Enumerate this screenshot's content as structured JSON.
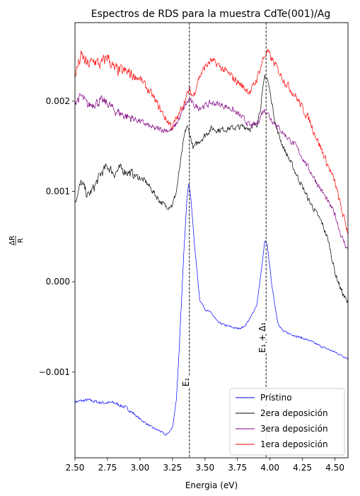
{
  "chart_data": {
    "type": "line",
    "title": "Espectros de RDS para la muestra CdTe(001)/Ag",
    "xlabel": "Energia (eV)",
    "ylabel": "ΔR/R",
    "xlim": [
      2.5,
      4.6
    ],
    "ylim": [
      -0.00195,
      0.00287
    ],
    "xticks": [
      2.5,
      2.75,
      3.0,
      3.25,
      3.5,
      3.75,
      4.0,
      4.25,
      4.5
    ],
    "xtick_labels": [
      "2.50",
      "2.75",
      "3.00",
      "3.25",
      "3.50",
      "3.75",
      "4.00",
      "4.25",
      "4.50"
    ],
    "yticks": [
      -0.001,
      0.0,
      0.001,
      0.002
    ],
    "ytick_labels": [
      "−0.001",
      "0.000",
      "0.001",
      "0.002"
    ],
    "grid": false,
    "legend_position": "lower-right",
    "vlines": [
      {
        "x": 3.38,
        "label": "E₁"
      },
      {
        "x": 3.97,
        "label": "E₁ + Δ₁"
      }
    ],
    "series": [
      {
        "name": "Prístino",
        "color": "#0000ff",
        "noise": 1e-05,
        "points": [
          [
            2.5,
            -0.00133
          ],
          [
            2.6,
            -0.00131
          ],
          [
            2.7,
            -0.00134
          ],
          [
            2.8,
            -0.00134
          ],
          [
            2.9,
            -0.0014
          ],
          [
            3.0,
            -0.00152
          ],
          [
            3.1,
            -0.00162
          ],
          [
            3.15,
            -0.00165
          ],
          [
            3.2,
            -0.0017
          ],
          [
            3.25,
            -0.00162
          ],
          [
            3.28,
            -0.0013
          ],
          [
            3.3,
            -0.0008
          ],
          [
            3.32,
            -0.0002
          ],
          [
            3.34,
            0.0004
          ],
          [
            3.36,
            0.0009
          ],
          [
            3.375,
            0.0011
          ],
          [
            3.39,
            0.00095
          ],
          [
            3.42,
            0.0004
          ],
          [
            3.46,
            -0.0002
          ],
          [
            3.5,
            -0.0003
          ],
          [
            3.55,
            -0.00035
          ],
          [
            3.6,
            -0.00045
          ],
          [
            3.65,
            -0.00048
          ],
          [
            3.7,
            -0.0005
          ],
          [
            3.75,
            -0.00052
          ],
          [
            3.8,
            -0.0005
          ],
          [
            3.85,
            -0.0004
          ],
          [
            3.9,
            -0.00025
          ],
          [
            3.94,
            0.0002
          ],
          [
            3.96,
            0.00045
          ],
          [
            3.98,
            0.0004
          ],
          [
            4.02,
            -0.0001
          ],
          [
            4.06,
            -0.00045
          ],
          [
            4.1,
            -0.00055
          ],
          [
            4.2,
            -0.0006
          ],
          [
            4.3,
            -0.00065
          ],
          [
            4.4,
            -0.00072
          ],
          [
            4.5,
            -0.00078
          ],
          [
            4.6,
            -0.00085
          ]
        ]
      },
      {
        "name": "2era deposición",
        "color": "#000000",
        "noise": 3e-05,
        "points": [
          [
            2.5,
            0.0009
          ],
          [
            2.55,
            0.0011
          ],
          [
            2.6,
            0.00095
          ],
          [
            2.65,
            0.00105
          ],
          [
            2.7,
            0.0012
          ],
          [
            2.75,
            0.00128
          ],
          [
            2.8,
            0.0012
          ],
          [
            2.85,
            0.00125
          ],
          [
            2.9,
            0.00122
          ],
          [
            3.0,
            0.00115
          ],
          [
            3.05,
            0.0011
          ],
          [
            3.1,
            0.001
          ],
          [
            3.15,
            0.0009
          ],
          [
            3.2,
            0.00083
          ],
          [
            3.25,
            0.00085
          ],
          [
            3.28,
            0.001
          ],
          [
            3.31,
            0.0013
          ],
          [
            3.34,
            0.0016
          ],
          [
            3.36,
            0.00173
          ],
          [
            3.38,
            0.00165
          ],
          [
            3.41,
            0.00148
          ],
          [
            3.45,
            0.00155
          ],
          [
            3.5,
            0.00162
          ],
          [
            3.55,
            0.0017
          ],
          [
            3.6,
            0.00168
          ],
          [
            3.7,
            0.0017
          ],
          [
            3.8,
            0.00172
          ],
          [
            3.85,
            0.0017
          ],
          [
            3.9,
            0.00175
          ],
          [
            3.93,
            0.00195
          ],
          [
            3.96,
            0.00228
          ],
          [
            3.98,
            0.00225
          ],
          [
            4.0,
            0.0021
          ],
          [
            4.05,
            0.0017
          ],
          [
            4.1,
            0.0015
          ],
          [
            4.2,
            0.0012
          ],
          [
            4.3,
            0.0009
          ],
          [
            4.4,
            0.00065
          ],
          [
            4.45,
            0.00045
          ],
          [
            4.5,
            0.0001
          ],
          [
            4.55,
            -0.0001
          ],
          [
            4.6,
            -0.00025
          ]
        ]
      },
      {
        "name": "3era deposición",
        "color": "#800080",
        "noise": 3e-05,
        "points": [
          [
            2.5,
            0.002
          ],
          [
            2.55,
            0.00205
          ],
          [
            2.6,
            0.00195
          ],
          [
            2.65,
            0.00198
          ],
          [
            2.7,
            0.002
          ],
          [
            2.75,
            0.00198
          ],
          [
            2.8,
            0.0019
          ],
          [
            2.9,
            0.00183
          ],
          [
            3.0,
            0.00178
          ],
          [
            3.1,
            0.0017
          ],
          [
            3.2,
            0.00168
          ],
          [
            3.25,
            0.00168
          ],
          [
            3.3,
            0.0018
          ],
          [
            3.35,
            0.00196
          ],
          [
            3.38,
            0.00202
          ],
          [
            3.41,
            0.00196
          ],
          [
            3.45,
            0.00193
          ],
          [
            3.5,
            0.00195
          ],
          [
            3.55,
            0.00198
          ],
          [
            3.6,
            0.00197
          ],
          [
            3.7,
            0.00192
          ],
          [
            3.8,
            0.0018
          ],
          [
            3.85,
            0.00172
          ],
          [
            3.9,
            0.00175
          ],
          [
            3.95,
            0.0019
          ],
          [
            3.98,
            0.00188
          ],
          [
            4.0,
            0.00182
          ],
          [
            4.1,
            0.00165
          ],
          [
            4.2,
            0.0015
          ],
          [
            4.3,
            0.00125
          ],
          [
            4.4,
            0.001
          ],
          [
            4.5,
            0.00075
          ],
          [
            4.55,
            0.0005
          ],
          [
            4.6,
            0.00035
          ]
        ]
      },
      {
        "name": "1era deposición",
        "color": "#ff0000",
        "noise": 4e-05,
        "points": [
          [
            2.5,
            0.0023
          ],
          [
            2.55,
            0.0025
          ],
          [
            2.6,
            0.0024
          ],
          [
            2.65,
            0.00245
          ],
          [
            2.7,
            0.0024
          ],
          [
            2.75,
            0.0025
          ],
          [
            2.8,
            0.00235
          ],
          [
            2.9,
            0.00232
          ],
          [
            3.0,
            0.00225
          ],
          [
            3.1,
            0.00205
          ],
          [
            3.2,
            0.0018
          ],
          [
            3.25,
            0.00172
          ],
          [
            3.3,
            0.00185
          ],
          [
            3.35,
            0.00203
          ],
          [
            3.38,
            0.00212
          ],
          [
            3.41,
            0.00205
          ],
          [
            3.45,
            0.00225
          ],
          [
            3.5,
            0.00238
          ],
          [
            3.55,
            0.00245
          ],
          [
            3.6,
            0.0024
          ],
          [
            3.7,
            0.00228
          ],
          [
            3.8,
            0.00215
          ],
          [
            3.85,
            0.0021
          ],
          [
            3.9,
            0.00225
          ],
          [
            3.95,
            0.00248
          ],
          [
            3.98,
            0.00255
          ],
          [
            4.0,
            0.0025
          ],
          [
            4.1,
            0.00225
          ],
          [
            4.2,
            0.00205
          ],
          [
            4.3,
            0.0018
          ],
          [
            4.4,
            0.00145
          ],
          [
            4.5,
            0.0011
          ],
          [
            4.55,
            0.0008
          ],
          [
            4.6,
            0.00055
          ]
        ]
      }
    ]
  }
}
